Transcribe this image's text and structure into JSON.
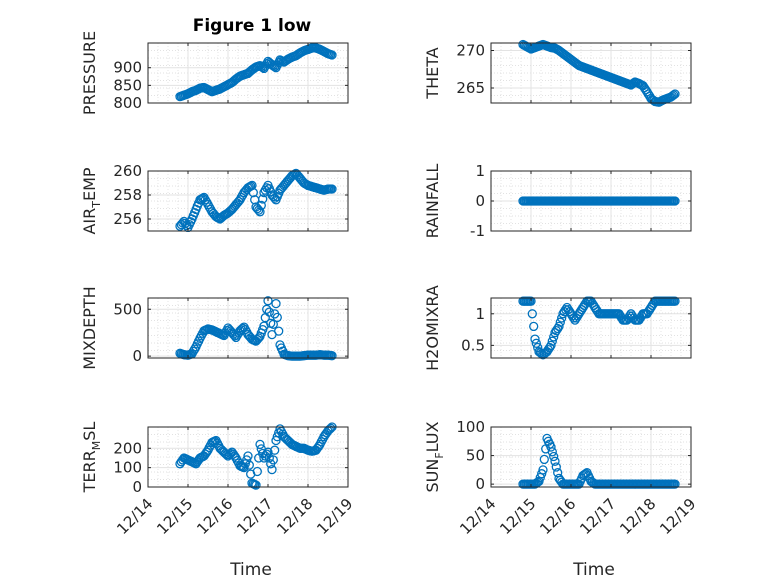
{
  "figure": {
    "title": "Figure 1 low",
    "xlabel": "Time",
    "marker_color": "#0072BD",
    "x_tick_labels": [
      "12/14",
      "12/15",
      "12/16",
      "12/17",
      "12/18",
      "12/19"
    ]
  },
  "chart_data": [
    {
      "type": "scatter",
      "panel": "pressure",
      "title": "Figure 1 low",
      "ylabel": "PRESSURE",
      "xlabel": "",
      "ylim": [
        800,
        970
      ],
      "yticks": [
        800,
        850,
        900
      ],
      "yticklabels": [
        "800",
        "850",
        "900"
      ],
      "xlim": [
        0,
        5
      ],
      "grid": true,
      "x": [
        0.8,
        0.9,
        1.0,
        1.1,
        1.2,
        1.3,
        1.4,
        1.5,
        1.6,
        1.7,
        1.8,
        1.9,
        2.0,
        2.1,
        2.2,
        2.3,
        2.4,
        2.5,
        2.6,
        2.7,
        2.8,
        2.9,
        3.0,
        3.1,
        3.2,
        3.3,
        3.4,
        3.5,
        3.6,
        3.7,
        3.8,
        3.9,
        4.0,
        4.1,
        4.2,
        4.3,
        4.4,
        4.5,
        4.6
      ],
      "y": [
        818,
        822,
        826,
        832,
        836,
        842,
        844,
        838,
        832,
        836,
        840,
        846,
        852,
        858,
        868,
        876,
        880,
        884,
        894,
        902,
        906,
        898,
        918,
        908,
        900,
        922,
        916,
        924,
        930,
        934,
        942,
        948,
        952,
        956,
        956,
        952,
        946,
        940,
        936
      ]
    },
    {
      "type": "scatter",
      "panel": "theta",
      "ylabel": "THETA",
      "ylim": [
        263,
        271
      ],
      "yticks": [
        265,
        270
      ],
      "yticklabels": [
        "265",
        "270"
      ],
      "xlim": [
        0,
        5
      ],
      "grid": true,
      "x": [
        0.8,
        0.9,
        1.0,
        1.1,
        1.2,
        1.3,
        1.4,
        1.5,
        1.6,
        1.7,
        1.8,
        1.9,
        2.0,
        2.1,
        2.2,
        2.3,
        2.4,
        2.5,
        2.6,
        2.7,
        2.8,
        2.9,
        3.0,
        3.1,
        3.2,
        3.3,
        3.4,
        3.5,
        3.6,
        3.7,
        3.8,
        3.9,
        4.0,
        4.1,
        4.2,
        4.3,
        4.4,
        4.5,
        4.6
      ],
      "y": [
        270.8,
        270.5,
        270.2,
        270.4,
        270.6,
        270.8,
        270.6,
        270.4,
        270.3,
        270.0,
        269.6,
        269.2,
        268.8,
        268.4,
        268.0,
        267.8,
        267.6,
        267.4,
        267.2,
        267.0,
        266.8,
        266.6,
        266.4,
        266.2,
        266.0,
        265.8,
        265.6,
        265.4,
        265.8,
        265.6,
        265.3,
        264.5,
        263.6,
        263.2,
        263.1,
        263.4,
        263.6,
        263.8,
        264.2
      ]
    },
    {
      "type": "scatter",
      "panel": "air_temp",
      "ylabel": "AIR_TEMP",
      "ylim": [
        255,
        260
      ],
      "yticks": [
        256,
        258,
        260
      ],
      "yticklabels": [
        "256",
        "258",
        "260"
      ],
      "xlim": [
        0,
        5
      ],
      "grid": true,
      "x": [
        0.8,
        0.9,
        1.0,
        1.1,
        1.2,
        1.3,
        1.4,
        1.5,
        1.6,
        1.7,
        1.8,
        1.9,
        2.0,
        2.1,
        2.2,
        2.3,
        2.4,
        2.5,
        2.6,
        2.7,
        2.8,
        2.9,
        3.0,
        3.1,
        3.2,
        3.3,
        3.4,
        3.5,
        3.6,
        3.7,
        3.8,
        3.9,
        4.0,
        4.1,
        4.2,
        4.3,
        4.4,
        4.5,
        4.6
      ],
      "y": [
        255.4,
        255.8,
        255.3,
        256.0,
        256.8,
        257.6,
        257.8,
        257.2,
        256.6,
        256.2,
        256.0,
        256.3,
        256.5,
        256.8,
        257.2,
        257.6,
        258.2,
        258.6,
        258.8,
        257.0,
        256.6,
        258.2,
        258.8,
        258.0,
        257.6,
        258.4,
        258.8,
        259.2,
        259.6,
        259.8,
        259.4,
        259.0,
        258.8,
        258.7,
        258.6,
        258.5,
        258.4,
        258.5,
        258.5
      ]
    },
    {
      "type": "scatter",
      "panel": "rainfall",
      "ylabel": "RAINFALL",
      "ylim": [
        -1,
        1
      ],
      "yticks": [
        -1,
        0,
        1
      ],
      "yticklabels": [
        "-1",
        "0",
        "1"
      ],
      "xlim": [
        0,
        5
      ],
      "grid": true,
      "x": [
        0.8,
        0.9,
        1.0,
        1.1,
        1.2,
        1.3,
        1.4,
        1.5,
        1.6,
        1.7,
        1.8,
        1.9,
        2.0,
        2.1,
        2.2,
        2.3,
        2.4,
        2.5,
        2.6,
        2.7,
        2.8,
        2.9,
        3.0,
        3.1,
        3.2,
        3.3,
        3.4,
        3.5,
        3.6,
        3.7,
        3.8,
        3.9,
        4.0,
        4.1,
        4.2,
        4.3,
        4.4,
        4.5,
        4.6
      ],
      "y": [
        0,
        0,
        0,
        0,
        0,
        0,
        0,
        0,
        0,
        0,
        0,
        0,
        0,
        0,
        0,
        0,
        0,
        0,
        0,
        0,
        0,
        0,
        0,
        0,
        0,
        0,
        0,
        0,
        0,
        0,
        0,
        0,
        0,
        0,
        0,
        0,
        0,
        0,
        0
      ]
    },
    {
      "type": "scatter",
      "panel": "mixdepth",
      "ylabel": "MIXDEPTH",
      "ylim": [
        -20,
        620
      ],
      "yticks": [
        0,
        500
      ],
      "yticklabels": [
        "0",
        "500"
      ],
      "xlim": [
        0,
        5
      ],
      "grid": true,
      "x": [
        0.8,
        0.9,
        1.0,
        1.1,
        1.2,
        1.3,
        1.4,
        1.5,
        1.6,
        1.7,
        1.8,
        1.9,
        2.0,
        2.1,
        2.2,
        2.3,
        2.4,
        2.5,
        2.6,
        2.7,
        2.8,
        2.9,
        3.0,
        3.1,
        3.2,
        3.3,
        3.4,
        3.5,
        3.6,
        3.7,
        3.8,
        3.9,
        4.0,
        4.1,
        4.2,
        4.3,
        4.4,
        4.5,
        4.6
      ],
      "y": [
        30,
        15,
        10,
        25,
        100,
        190,
        270,
        290,
        280,
        260,
        240,
        220,
        300,
        250,
        200,
        270,
        310,
        230,
        180,
        160,
        210,
        320,
        590,
        230,
        560,
        120,
        20,
        5,
        0,
        0,
        0,
        5,
        10,
        10,
        10,
        15,
        10,
        10,
        5
      ]
    },
    {
      "type": "scatter",
      "panel": "h2omixra",
      "ylabel": "H2OMIXRA",
      "ylim": [
        0.3,
        1.25
      ],
      "yticks": [
        0.5,
        1
      ],
      "yticklabels": [
        "0.5",
        "1"
      ],
      "xlim": [
        0,
        5
      ],
      "grid": true,
      "x": [
        0.8,
        0.9,
        1.0,
        1.1,
        1.2,
        1.3,
        1.4,
        1.5,
        1.6,
        1.7,
        1.8,
        1.9,
        2.0,
        2.1,
        2.2,
        2.3,
        2.4,
        2.5,
        2.6,
        2.7,
        2.8,
        2.9,
        3.0,
        3.1,
        3.2,
        3.3,
        3.4,
        3.5,
        3.6,
        3.7,
        3.8,
        3.9,
        4.0,
        4.1,
        4.2,
        4.3,
        4.4,
        4.5,
        4.6
      ],
      "y": [
        1.2,
        1.2,
        1.2,
        0.6,
        0.4,
        0.35,
        0.4,
        0.5,
        0.7,
        0.8,
        1.0,
        1.1,
        1.0,
        0.9,
        1.0,
        1.1,
        1.2,
        1.2,
        1.1,
        1.0,
        1.0,
        1.0,
        1.0,
        1.0,
        1.0,
        0.9,
        0.9,
        1.0,
        0.9,
        0.9,
        1.0,
        1.0,
        1.1,
        1.2,
        1.2,
        1.2,
        1.2,
        1.2,
        1.2
      ]
    },
    {
      "type": "scatter",
      "panel": "terr_msl",
      "ylabel": "TERR_MSL",
      "ylim": [
        0,
        310
      ],
      "yticks": [
        0,
        100,
        200
      ],
      "yticklabels": [
        "0",
        "100",
        "200"
      ],
      "xlim": [
        0,
        5
      ],
      "grid": true,
      "x": [
        0.8,
        0.9,
        1.0,
        1.1,
        1.2,
        1.3,
        1.4,
        1.5,
        1.6,
        1.7,
        1.8,
        1.9,
        2.0,
        2.1,
        2.2,
        2.3,
        2.4,
        2.5,
        2.6,
        2.7,
        2.8,
        2.9,
        3.0,
        3.1,
        3.2,
        3.3,
        3.4,
        3.5,
        3.6,
        3.7,
        3.8,
        3.9,
        4.0,
        4.1,
        4.2,
        4.3,
        4.4,
        4.5,
        4.6
      ],
      "y": [
        120,
        150,
        140,
        130,
        120,
        150,
        160,
        190,
        230,
        240,
        200,
        180,
        160,
        180,
        150,
        110,
        100,
        160,
        20,
        10,
        220,
        150,
        180,
        90,
        240,
        300,
        260,
        240,
        220,
        210,
        200,
        200,
        190,
        185,
        190,
        220,
        260,
        290,
        310
      ]
    },
    {
      "type": "scatter",
      "panel": "sun_flux",
      "ylabel": "SUN_FLUX",
      "ylim": [
        -5,
        100
      ],
      "yticks": [
        0,
        50,
        100
      ],
      "yticklabels": [
        "0",
        "50",
        "100"
      ],
      "xlim": [
        0,
        5
      ],
      "grid": true,
      "x": [
        0.8,
        0.9,
        1.0,
        1.1,
        1.2,
        1.3,
        1.4,
        1.5,
        1.6,
        1.7,
        1.8,
        1.9,
        2.0,
        2.1,
        2.2,
        2.3,
        2.4,
        2.5,
        2.6,
        2.7,
        2.8,
        2.9,
        3.0,
        3.1,
        3.2,
        3.3,
        3.4,
        3.5,
        3.6,
        3.7,
        3.8,
        3.9,
        4.0,
        4.1,
        4.2,
        4.3,
        4.4,
        4.5,
        4.6
      ],
      "y": [
        0,
        0,
        0,
        0,
        5,
        25,
        80,
        65,
        40,
        10,
        0,
        0,
        0,
        0,
        0,
        15,
        20,
        5,
        0,
        0,
        0,
        0,
        0,
        0,
        0,
        0,
        0,
        0,
        0,
        0,
        0,
        0,
        0,
        0,
        0,
        0,
        0,
        0,
        0
      ]
    }
  ]
}
